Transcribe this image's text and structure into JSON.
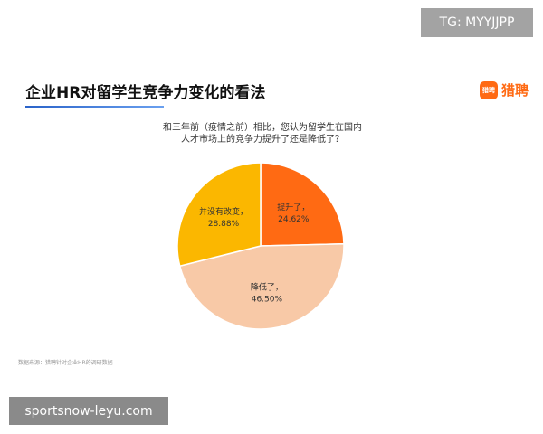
{
  "watermark_top": "TG: MYYJJPP",
  "watermark_bottom": "sportsnow-leyu.com",
  "header": {
    "title": "企业HR对留学生竞争力变化的看法",
    "logo_text": "猎聘",
    "logo_icon_text": "猎聘",
    "logo_icon": "liepin-logo-icon",
    "accent_color": "#ff6a13",
    "underline_color": "#2a63c9"
  },
  "chart_data": {
    "type": "pie",
    "title_lines": [
      "和三年前（疫情之前）相比，您认为留学生在国内",
      "人才市场上的竞争力提升了还是降低了？"
    ],
    "slices": [
      {
        "label": "提升了，",
        "value": 24.62,
        "display": "24.62%",
        "color": "#ff6a13"
      },
      {
        "label": "降低了，",
        "value": 46.5,
        "display": "46.50%",
        "color": "#f8c9a7"
      },
      {
        "label": "并没有改变，",
        "value": 28.88,
        "display": "28.88%",
        "color": "#fbb700"
      }
    ],
    "start_angle_deg": 0,
    "direction": "clockwise"
  },
  "source": "数据来源：猎聘针对企业HR的调研数据"
}
